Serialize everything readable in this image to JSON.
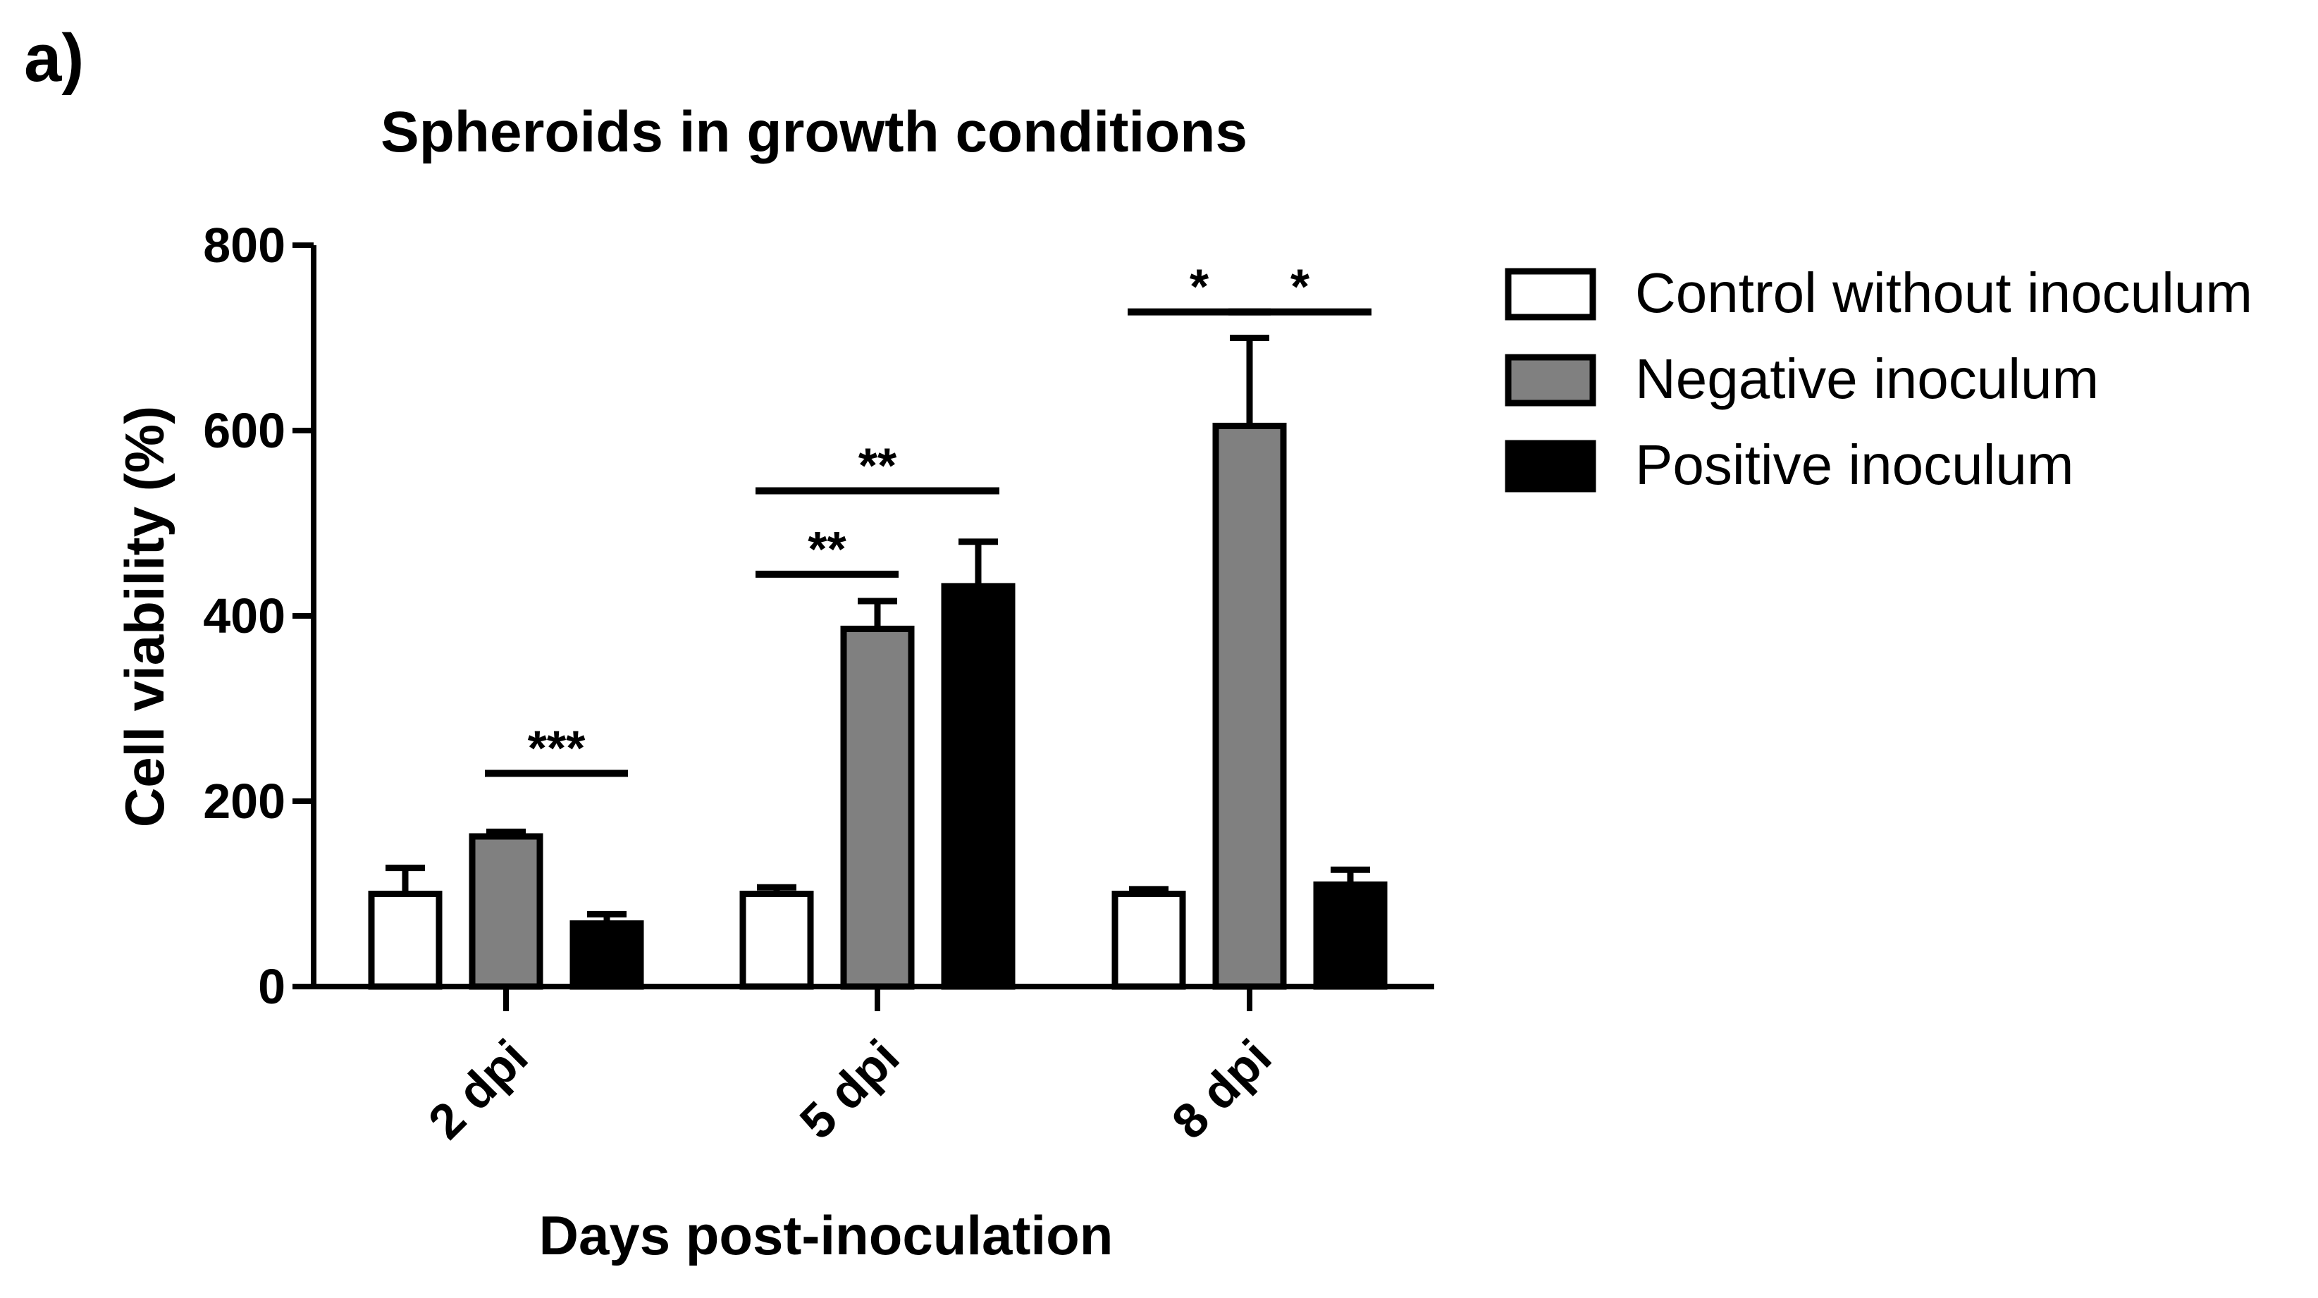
{
  "panel_label": "a)",
  "chart_data": {
    "type": "bar",
    "title": "Spheroids in growth conditions",
    "xlabel": "Days post-inoculation",
    "ylabel": "Cell viability (%)",
    "ylim": [
      0,
      800
    ],
    "yticks": [
      "0",
      "200",
      "400",
      "600",
      "800"
    ],
    "categories": [
      "2 dpi",
      "5 dpi",
      "8 dpi"
    ],
    "series": [
      {
        "name": "Control without inoculum",
        "color": "#ffffff",
        "values": [
          100,
          100,
          100
        ],
        "errors": [
          28,
          7,
          5
        ]
      },
      {
        "name": "Negative inoculum",
        "color": "#808080",
        "values": [
          162,
          386,
          605
        ],
        "errors": [
          5,
          30,
          95
        ]
      },
      {
        "name": "Positive inoculum",
        "color": "#000000",
        "values": [
          68,
          432,
          110
        ],
        "errors": [
          10,
          48,
          16
        ]
      }
    ],
    "legend_position": "right",
    "significance": [
      {
        "label": "***",
        "category": 0,
        "from_series": 1,
        "to_series": 2,
        "level": 230
      },
      {
        "label": "**",
        "category": 1,
        "from_series": 0,
        "to_series": 1,
        "level": 445
      },
      {
        "label": "**",
        "category": 1,
        "from_series": 0,
        "to_series": 2,
        "level": 535
      },
      {
        "label": "*",
        "category": 2,
        "from_series": 0,
        "to_series": 1,
        "level": 728
      },
      {
        "label": "*",
        "category": 2,
        "from_series": 1,
        "to_series": 2,
        "level": 728
      }
    ]
  }
}
